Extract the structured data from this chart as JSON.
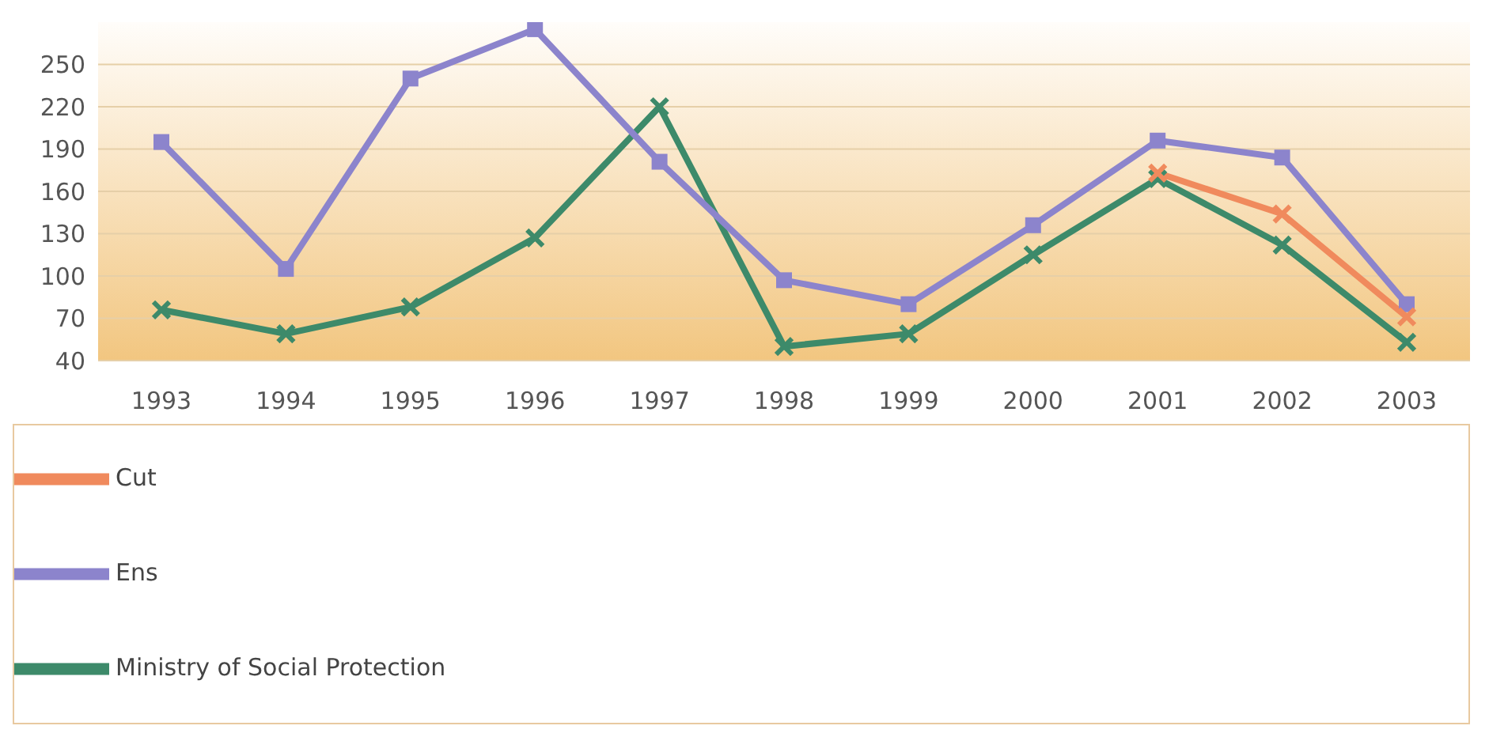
{
  "chart_data": {
    "type": "line",
    "categories": [
      "1993",
      "1994",
      "1995",
      "1996",
      "1997",
      "1998",
      "1999",
      "2000",
      "2001",
      "2002",
      "2003"
    ],
    "series": [
      {
        "name": "Ministry of Social Protection",
        "color": "#3d8a6a",
        "marker": "cross",
        "values": [
          76,
          59,
          78,
          127,
          220,
          50,
          59,
          115,
          169,
          122,
          53
        ]
      },
      {
        "name": "Ens",
        "color": "#8c84cc",
        "marker": "square",
        "values": [
          195,
          105,
          240,
          275,
          181,
          97,
          80,
          136,
          196,
          184,
          80
        ]
      },
      {
        "name": "Cut",
        "color": "#f08a5d",
        "marker": "cross",
        "values": [
          null,
          null,
          null,
          null,
          null,
          null,
          null,
          null,
          173,
          144,
          71
        ]
      }
    ],
    "ylim": [
      40,
      280
    ],
    "yticks": [
      40,
      70,
      100,
      130,
      160,
      190,
      220,
      250
    ],
    "grid": "y",
    "legend": "bottom"
  }
}
